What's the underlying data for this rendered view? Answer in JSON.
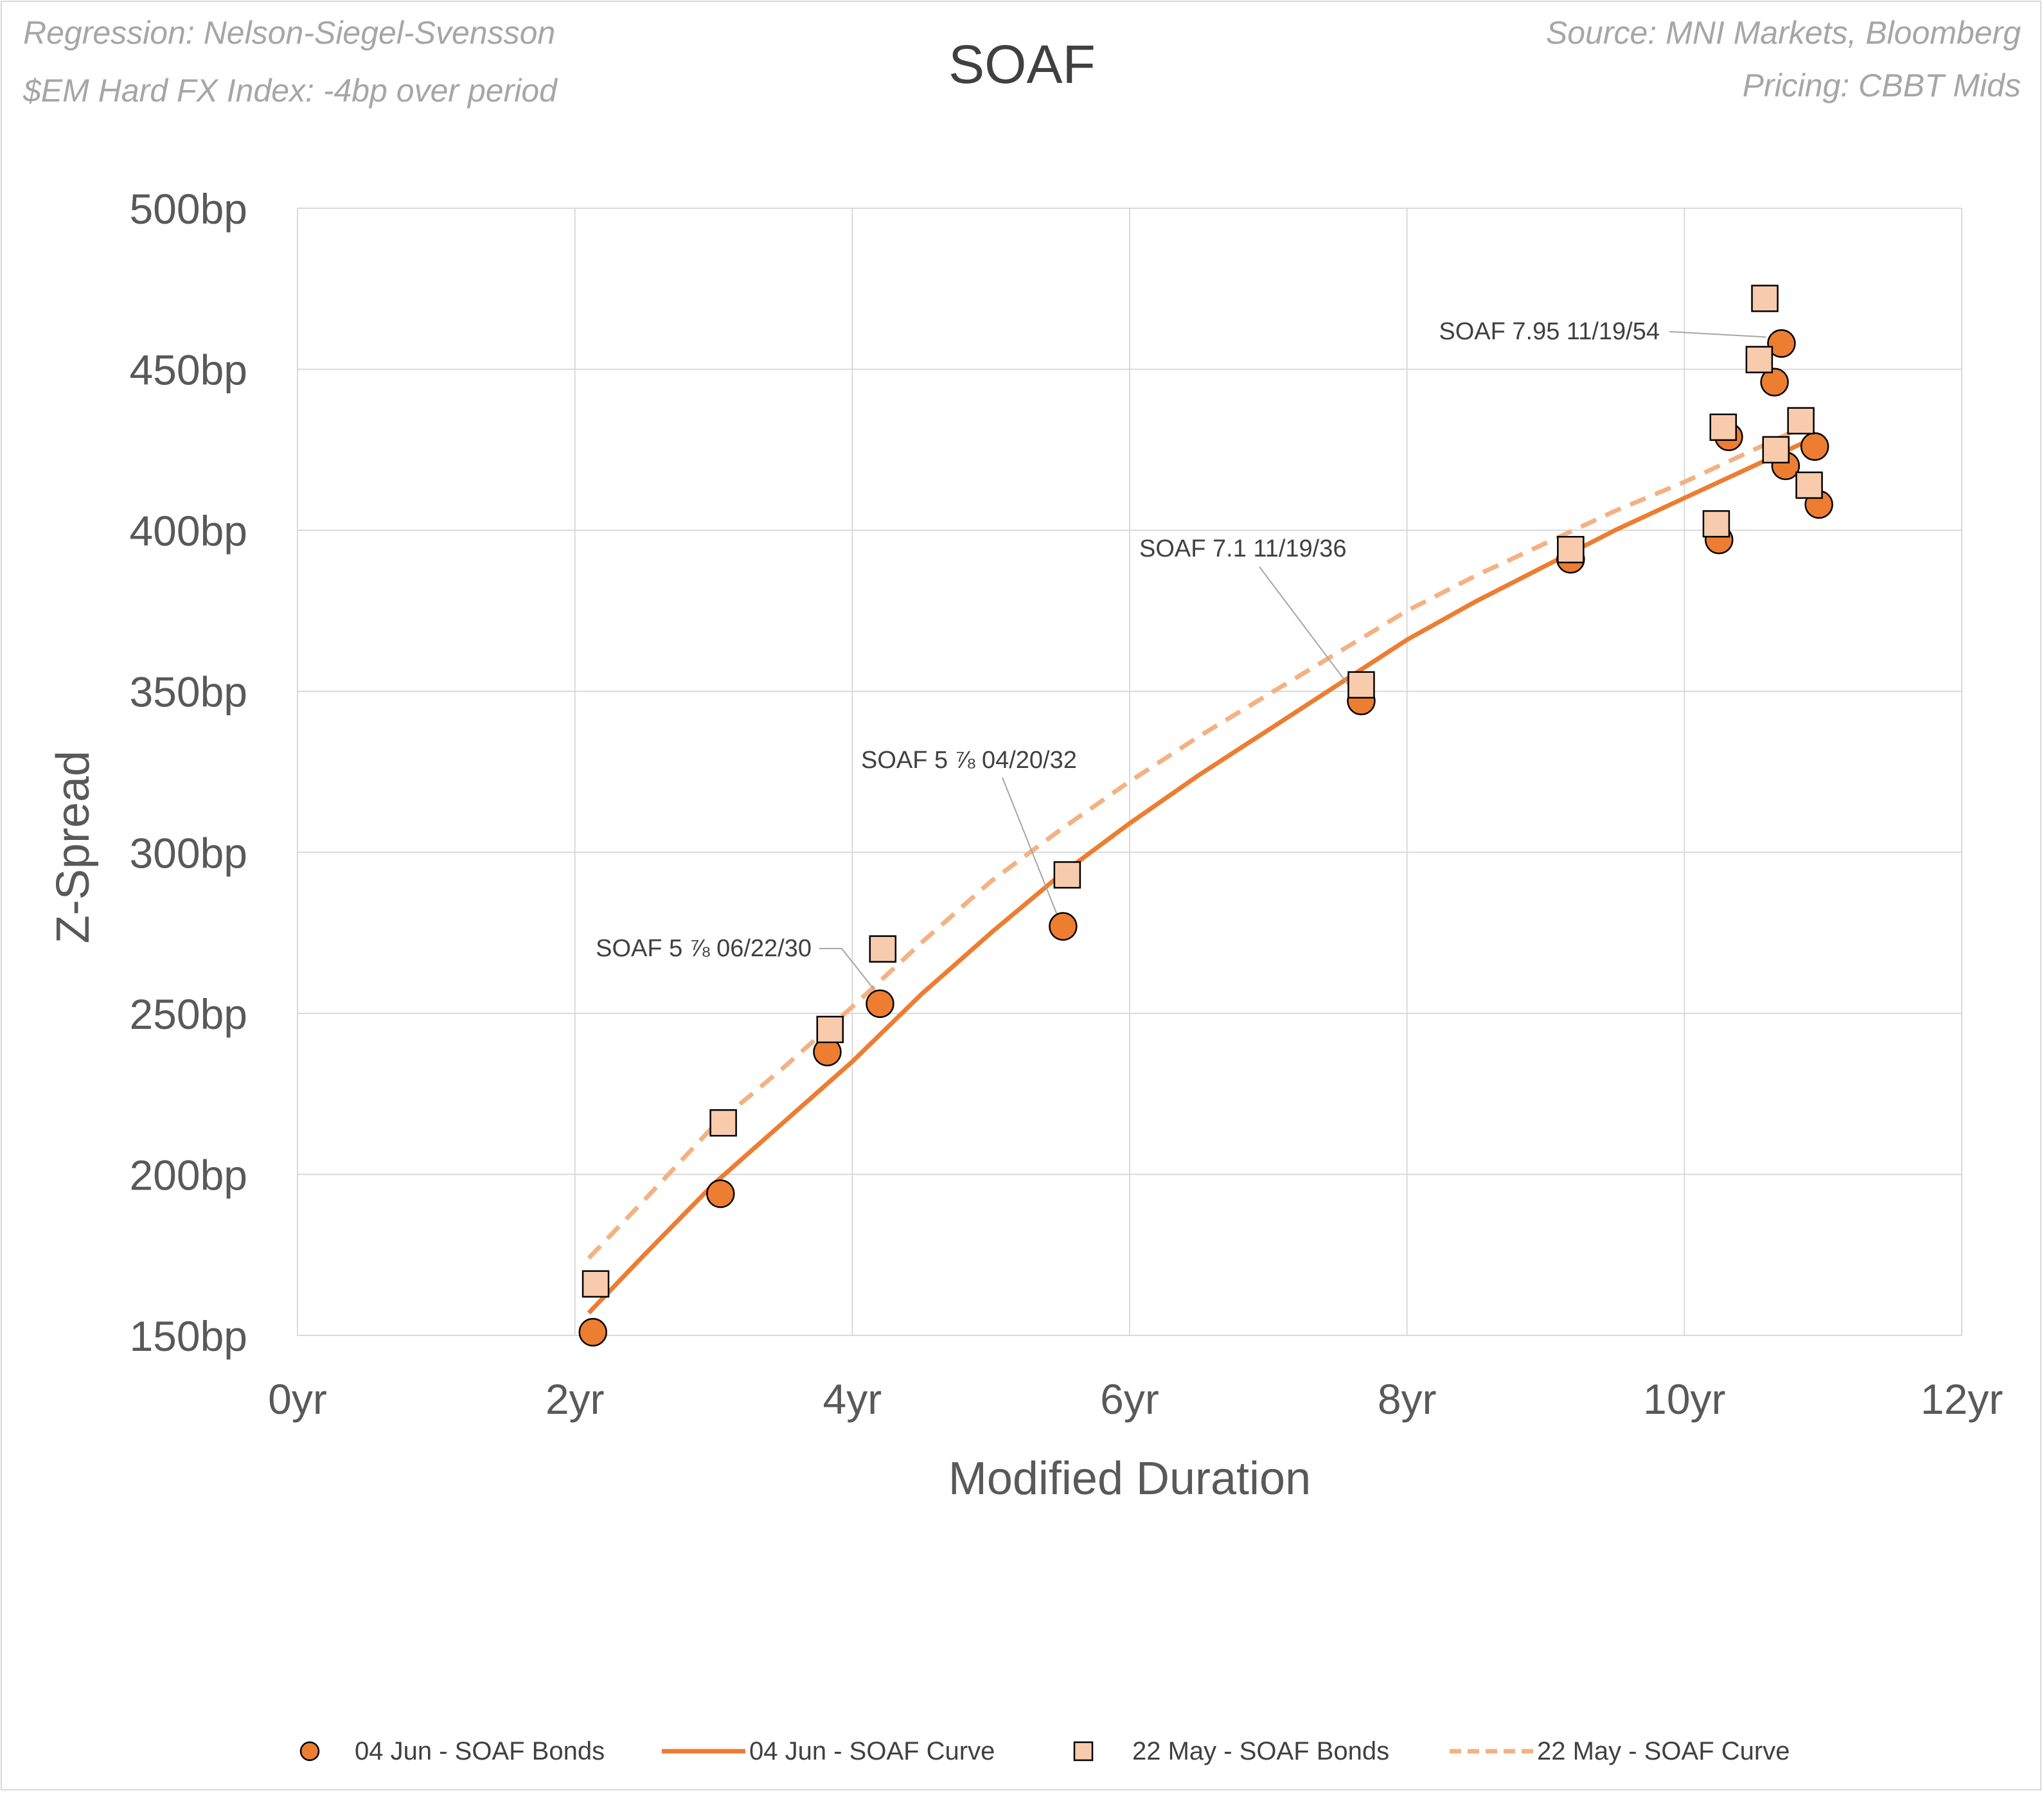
{
  "notes": {
    "regression": "Regression: Nelson-Siegel-Svensson",
    "index": "$EM Hard FX Index: -4bp over period",
    "source": "Source: MNI Markets, Bloomberg",
    "pricing": "Pricing: CBBT Mids"
  },
  "colors": {
    "jun_fill": "#ed7d31",
    "may_fill": "#f8cbad",
    "jun_line": "#ed7d31",
    "may_line": "#f4b183",
    "grid": "#d9d9d9",
    "axis_text": "#595959"
  },
  "chart_data": {
    "type": "scatter",
    "title": "SOAF",
    "xlabel": "Modified Duration",
    "ylabel": "Z-Spread",
    "xlim": [
      0,
      12
    ],
    "ylim": [
      150,
      500
    ],
    "x_ticks": [
      0,
      2,
      4,
      6,
      8,
      10,
      12
    ],
    "x_tick_labels": [
      "0yr",
      "2yr",
      "4yr",
      "6yr",
      "8yr",
      "10yr",
      "12yr"
    ],
    "y_ticks": [
      150,
      200,
      250,
      300,
      350,
      400,
      450,
      500
    ],
    "y_tick_labels": [
      "150bp",
      "200bp",
      "250bp",
      "300bp",
      "350bp",
      "400bp",
      "450bp",
      "500bp"
    ],
    "grid": true,
    "legend_position": "bottom",
    "series": [
      {
        "name": "04 Jun - SOAF Bonds",
        "kind": "points",
        "marker": "circle",
        "points": [
          [
            2.13,
            151
          ],
          [
            3.05,
            194
          ],
          [
            3.82,
            238
          ],
          [
            4.2,
            253
          ],
          [
            5.52,
            277
          ],
          [
            7.67,
            347
          ],
          [
            9.18,
            391
          ],
          [
            10.25,
            397
          ],
          [
            10.32,
            429
          ],
          [
            10.65,
            446
          ],
          [
            10.7,
            458
          ],
          [
            10.73,
            420
          ],
          [
            10.94,
            426
          ],
          [
            10.97,
            408
          ]
        ]
      },
      {
        "name": "04 Jun - SOAF Curve",
        "kind": "line",
        "style": "solid",
        "points": [
          [
            2.1,
            157
          ],
          [
            2.5,
            175
          ],
          [
            3.0,
            197
          ],
          [
            3.5,
            216
          ],
          [
            4.0,
            235
          ],
          [
            4.5,
            256
          ],
          [
            5.0,
            275
          ],
          [
            5.5,
            293
          ],
          [
            6.0,
            309
          ],
          [
            6.5,
            324
          ],
          [
            7.0,
            338
          ],
          [
            7.5,
            352
          ],
          [
            8.0,
            366
          ],
          [
            8.5,
            378
          ],
          [
            9.0,
            389
          ],
          [
            9.5,
            400
          ],
          [
            10.0,
            410
          ],
          [
            10.5,
            420
          ],
          [
            10.9,
            428
          ]
        ]
      },
      {
        "name": "22 May - SOAF Bonds",
        "kind": "points",
        "marker": "square",
        "points": [
          [
            2.15,
            166
          ],
          [
            3.07,
            216
          ],
          [
            3.84,
            245
          ],
          [
            4.22,
            270
          ],
          [
            5.55,
            293
          ],
          [
            7.67,
            352
          ],
          [
            9.18,
            394
          ],
          [
            10.23,
            402
          ],
          [
            10.28,
            432
          ],
          [
            10.54,
            453
          ],
          [
            10.58,
            472
          ],
          [
            10.66,
            425
          ],
          [
            10.84,
            434
          ],
          [
            10.9,
            414
          ]
        ]
      },
      {
        "name": "22 May - SOAF Curve",
        "kind": "line",
        "style": "dashed",
        "points": [
          [
            2.1,
            174
          ],
          [
            2.5,
            192
          ],
          [
            3.0,
            215
          ],
          [
            3.5,
            233
          ],
          [
            4.0,
            252
          ],
          [
            4.5,
            272
          ],
          [
            5.0,
            291
          ],
          [
            5.5,
            307
          ],
          [
            6.0,
            322
          ],
          [
            6.5,
            336
          ],
          [
            7.0,
            349
          ],
          [
            7.5,
            362
          ],
          [
            8.0,
            375
          ],
          [
            8.5,
            386
          ],
          [
            9.0,
            396
          ],
          [
            9.5,
            406
          ],
          [
            10.0,
            415
          ],
          [
            10.5,
            425
          ],
          [
            10.9,
            433
          ]
        ]
      }
    ],
    "annotations": [
      {
        "label": "SOAF 5 ⅞ 06/22/30",
        "x": 4.2,
        "y": 253
      },
      {
        "label": "SOAF 5 ⅞ 04/20/32",
        "x": 5.52,
        "y": 277
      },
      {
        "label": "SOAF 7.1 11/19/36",
        "x": 7.67,
        "y": 347
      },
      {
        "label": "SOAF 7.95 11/19/54",
        "x": 10.7,
        "y": 458
      }
    ]
  },
  "legend": [
    {
      "label": "04 Jun - SOAF Bonds"
    },
    {
      "label": "04 Jun - SOAF Curve"
    },
    {
      "label": "22 May - SOAF Bonds"
    },
    {
      "label": "22 May - SOAF Curve"
    }
  ]
}
